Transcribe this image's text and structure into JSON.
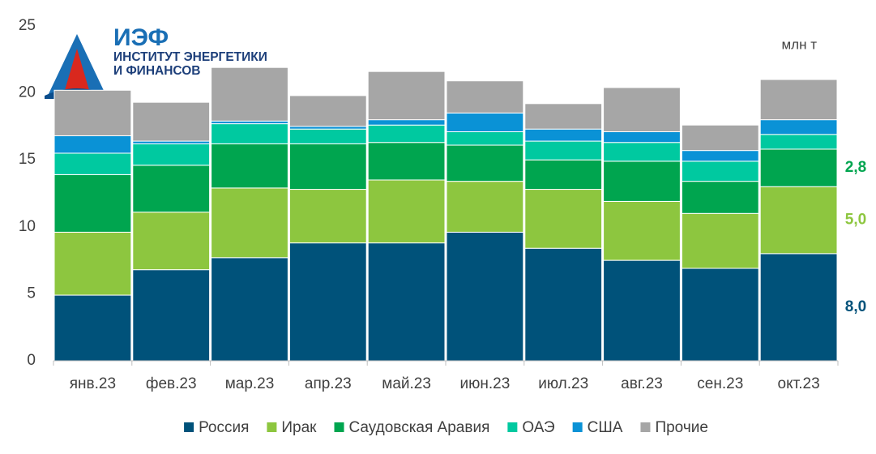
{
  "logo": {
    "title": "ИЭФ",
    "lines": [
      "ИНСТИТУТ ЭНЕРГЕТИКИ",
      "И ФИНАНСОВ"
    ]
  },
  "chart_data": {
    "type": "stacked_bar",
    "unit_label": "млн т",
    "categories": [
      "янв.23",
      "фев.23",
      "мар.23",
      "апр.23",
      "май.23",
      "июн.23",
      "июл.23",
      "авг.23",
      "сен.23",
      "окт.23"
    ],
    "series": [
      {
        "name": "Россия",
        "color": "#00527a",
        "values": [
          4.9,
          6.8,
          7.7,
          8.8,
          8.8,
          9.6,
          8.4,
          7.5,
          6.9,
          8.0
        ],
        "value_labels": [
          null,
          null,
          null,
          null,
          null,
          null,
          null,
          null,
          null,
          "8,0"
        ]
      },
      {
        "name": "Ирак",
        "color": "#8dc63f",
        "values": [
          4.7,
          4.3,
          5.2,
          4.0,
          4.7,
          3.8,
          4.4,
          4.4,
          4.1,
          5.0
        ],
        "value_labels": [
          null,
          null,
          null,
          null,
          null,
          null,
          null,
          null,
          null,
          "5,0"
        ]
      },
      {
        "name": "Саудовская Аравия",
        "color": "#00a54f",
        "values": [
          4.3,
          3.5,
          3.3,
          3.4,
          2.8,
          2.7,
          2.2,
          3.0,
          2.4,
          2.8
        ],
        "value_labels": [
          null,
          null,
          null,
          null,
          null,
          null,
          null,
          null,
          null,
          "2,8"
        ]
      },
      {
        "name": "ОАЭ",
        "color": "#00c9a0",
        "values": [
          1.6,
          1.6,
          1.5,
          1.1,
          1.3,
          1.0,
          1.4,
          1.4,
          1.5,
          1.1
        ]
      },
      {
        "name": "США",
        "color": "#0a92d6",
        "values": [
          1.3,
          0.2,
          0.2,
          0.2,
          0.4,
          1.4,
          0.9,
          0.8,
          0.8,
          1.1
        ]
      },
      {
        "name": "Прочие",
        "color": "#a6a6a6",
        "values": [
          3.4,
          2.9,
          4.0,
          2.3,
          3.6,
          2.4,
          1.9,
          3.3,
          1.9,
          3.0
        ]
      }
    ],
    "ylim": [
      0,
      25
    ],
    "yticks": [
      0,
      5,
      10,
      15,
      20,
      25
    ],
    "grid": false,
    "legend": "bottom"
  }
}
